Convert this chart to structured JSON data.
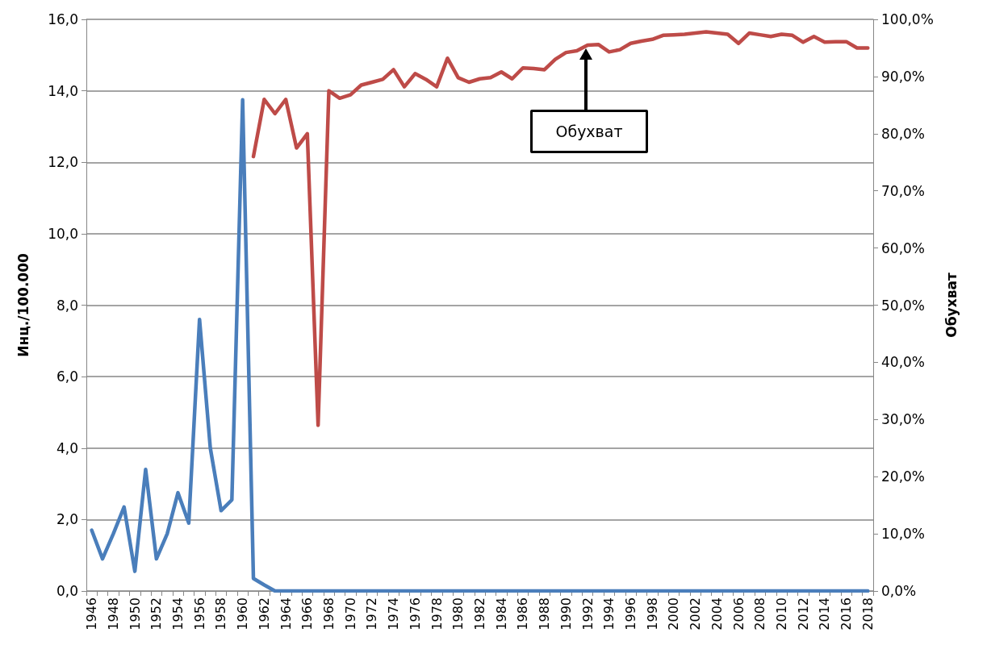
{
  "chart_data": {
    "type": "line",
    "ylabel": "Инц./100.000",
    "y2label": "Обухват",
    "categories": [
      "1946",
      null,
      "1948",
      null,
      "1950",
      null,
      "1952",
      null,
      "1954",
      null,
      "1956",
      null,
      "1958",
      null,
      "1960",
      null,
      "1962",
      null,
      "1964",
      null,
      "1966",
      null,
      "1968",
      null,
      "1970",
      null,
      "1972",
      null,
      "1974",
      null,
      "1976",
      null,
      "1978",
      null,
      "1980",
      null,
      "1982",
      null,
      "1984",
      null,
      "1986",
      null,
      "1988",
      null,
      "1990",
      null,
      "1992",
      null,
      "1994",
      null,
      "1996",
      null,
      "1998",
      null,
      "2000",
      null,
      "2002",
      null,
      "2004",
      null,
      "2006",
      null,
      "2008",
      null,
      "2010",
      null,
      "2012",
      null,
      "2014",
      null,
      "2016",
      null,
      "2018"
    ],
    "series": [
      {
        "color": "#4a7ebb",
        "values": [
          1.7,
          0.9,
          1.6,
          2.35,
          0.55,
          3.4,
          0.9,
          1.6,
          2.75,
          1.9,
          7.6,
          4.0,
          2.25,
          2.55,
          13.75,
          0.35,
          0.17,
          0,
          0,
          0,
          0,
          0,
          0,
          0,
          0,
          0,
          0,
          0,
          0,
          0,
          0,
          0,
          0,
          0,
          0,
          0,
          0,
          0,
          0,
          0,
          0,
          0,
          0,
          0,
          0,
          0,
          0,
          0,
          0,
          0,
          0,
          0,
          0,
          0,
          0,
          0,
          0,
          0,
          0,
          0,
          0,
          0,
          0,
          0,
          0,
          0,
          0,
          0,
          0,
          0,
          0,
          0,
          0
        ]
      },
      {
        "color": "#be4b48",
        "axis": "y2",
        "values": [
          null,
          null,
          null,
          null,
          null,
          null,
          null,
          null,
          null,
          null,
          null,
          null,
          null,
          null,
          null,
          76,
          86,
          83.5,
          86,
          77.5,
          80,
          29,
          87.5,
          86.2,
          86.8,
          88.5,
          89,
          89.5,
          91.2,
          88.2,
          90.5,
          89.5,
          88.2,
          93.2,
          89.8,
          89,
          89.6,
          89.8,
          90.8,
          89.6,
          91.5,
          91.4,
          91.2,
          93,
          94.2,
          94.5,
          95.5,
          95.6,
          94.3,
          94.7,
          95.8,
          96.2,
          96.5,
          97.2,
          97.3,
          97.4,
          97.6,
          97.8,
          97.6,
          97.4,
          95.8,
          97.6,
          97.3,
          97,
          97.4,
          97.2,
          96,
          97,
          96,
          96.1,
          96.1,
          95,
          95
        ]
      }
    ],
    "ylim": [
      0,
      16
    ],
    "yticks": [
      {
        "value": 0,
        "label": "0,0"
      },
      {
        "value": 2,
        "label": "2,0"
      },
      {
        "value": 4,
        "label": "4,0"
      },
      {
        "value": 6,
        "label": "6,0"
      },
      {
        "value": 8,
        "label": "8,0"
      },
      {
        "value": 10,
        "label": "10,0"
      },
      {
        "value": 12,
        "label": "12,0"
      },
      {
        "value": 14,
        "label": "14,0"
      },
      {
        "value": 16,
        "label": "16,0"
      }
    ],
    "y2lim": [
      0,
      100
    ],
    "y2ticks": [
      {
        "value": 0,
        "label": "0,0%"
      },
      {
        "value": 10,
        "label": "10,0%"
      },
      {
        "value": 20,
        "label": "20,0%"
      },
      {
        "value": 30,
        "label": "30,0%"
      },
      {
        "value": 40,
        "label": "40,0%"
      },
      {
        "value": 50,
        "label": "50,0%"
      },
      {
        "value": 60,
        "label": "60,0%"
      },
      {
        "value": 70,
        "label": "70,0%"
      },
      {
        "value": 80,
        "label": "80,0%"
      },
      {
        "value": 90,
        "label": "90,0%"
      },
      {
        "value": 100,
        "label": "100,0%"
      }
    ],
    "annotations": [
      "Обухват"
    ],
    "grid": "y",
    "marker": "none",
    "line_style": "solid"
  }
}
